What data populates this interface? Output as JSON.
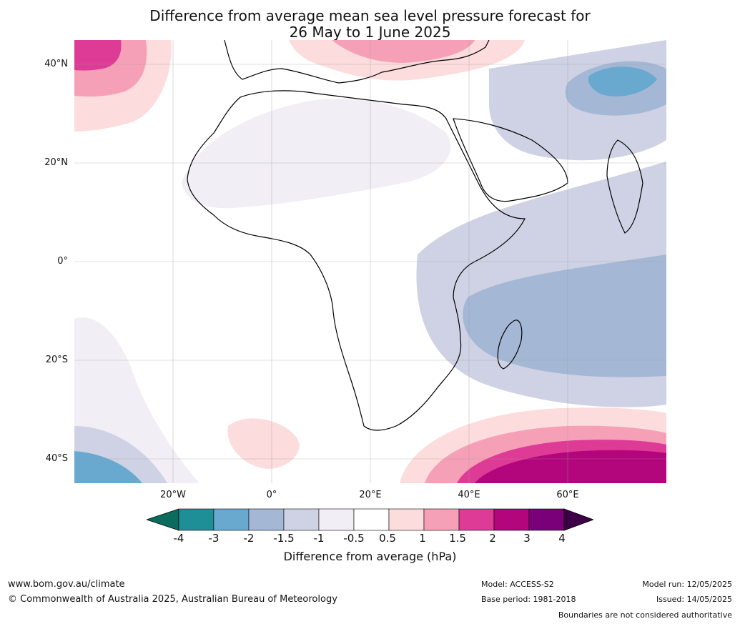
{
  "title": {
    "line1": "Difference from average mean sea level pressure forecast for",
    "line2": "26 May to 1 June 2025"
  },
  "axes": {
    "lat_labels": [
      "40°N",
      "20°N",
      "0°",
      "20°S",
      "40°S"
    ],
    "lon_labels": [
      "20°W",
      "0°",
      "20°E",
      "40°E",
      "60°E"
    ],
    "lat_range": [
      -45,
      45
    ],
    "lon_range": [
      -40,
      80
    ],
    "grid": true
  },
  "legend": {
    "ticks": [
      "-4",
      "-3",
      "-2",
      "-1.5",
      "-1",
      "-0.5",
      "0.5",
      "1",
      "1.5",
      "2",
      "3",
      "4"
    ],
    "caption": "Difference from average (hPa)",
    "colors": {
      "below_min": "#0b6b5c",
      "m4_m3": "#1e8f96",
      "m3_m2": "#6aa9cf",
      "m2_m15": "#a4b8d6",
      "m15_m1": "#cfd2e4",
      "m1_m05": "#f2eef5",
      "m05_05": "#ffffff",
      "p05_1": "#fcdcdc",
      "p1_15": "#f6a0b8",
      "p15_2": "#de3b97",
      "p2_3": "#b3067c",
      "p3_4": "#7a007a",
      "above_max": "#3d0046"
    }
  },
  "footer": {
    "website": "www.bom.gov.au/climate",
    "copyright": "© Commonwealth of Australia 2025, Australian Bureau of Meteorology",
    "model": "Model: ACCESS-S2",
    "base_period": "Base period: 1981-2018",
    "model_run": "Model run: 12/05/2025",
    "issued": "Issued: 14/05/2025",
    "disclaimer": "Boundaries are not considered authoritative"
  }
}
